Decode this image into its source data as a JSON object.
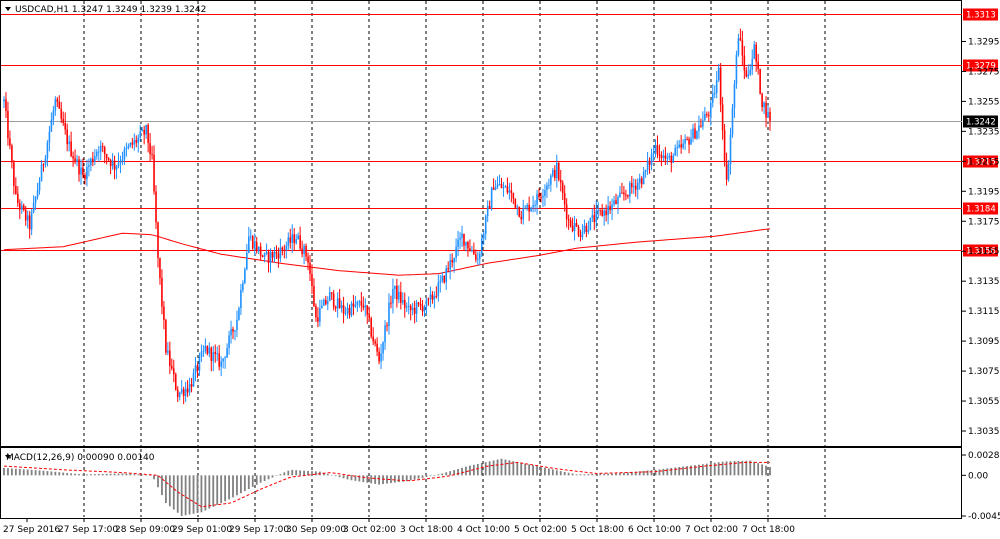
{
  "main_info": "USDCAD,H1  1.3247 1.3249 1.3239 1.3242",
  "macd_info": "MACD(12,26,9) 0.00090 0.00140",
  "colors": {
    "bull": "#1e90ff",
    "bear": "#ff0000",
    "level": "#ff0000",
    "ma": "#ff0000",
    "current": "#a0a0a0",
    "current_label_bg": "#000000",
    "histogram": "#808080",
    "signal": "#ff0000",
    "grid": "#000000",
    "frame": "#000000"
  },
  "chart_data": [
    {
      "type": "candlestick",
      "symbol": "USDCAD",
      "timeframe": "H1",
      "ohlc_last": {
        "open": 1.3247,
        "high": 1.3249,
        "low": 1.3239,
        "close": 1.3242
      },
      "ylim": [
        1.3025,
        1.3322
      ],
      "y_ticks": [
        "1.3295",
        "1.3275",
        "1.3255",
        "1.3235",
        "1.3215",
        "1.3195",
        "1.3175",
        "1.3155",
        "1.3135",
        "1.3115",
        "1.3095",
        "1.3075",
        "1.3055",
        "1.3035"
      ],
      "x_ticks": [
        "27 Sep 2016",
        "27 Sep 17:00",
        "28 Sep 09:00",
        "29 Sep 01:00",
        "29 Sep 17:00",
        "30 Sep 09:00",
        "3 Oct 02:00",
        "3 Oct 18:00",
        "4 Oct 10:00",
        "5 Oct 02:00",
        "5 Oct 18:00",
        "6 Oct 10:00",
        "7 Oct 02:00",
        "7 Oct 18:00"
      ],
      "horizontal_levels": [
        {
          "label": "1.3313",
          "value": 1.3313
        },
        {
          "label": "1.3279",
          "value": 1.3279
        },
        {
          "label": "1.3215",
          "value": 1.3215
        },
        {
          "label": "1.3184",
          "value": 1.3184
        },
        {
          "label": "1.3156",
          "value": 1.3156
        }
      ],
      "current_price": {
        "label": "1.3242",
        "value": 1.3242
      },
      "moving_average": [
        {
          "i": 0,
          "v": 1.3156
        },
        {
          "i": 30,
          "v": 1.3158
        },
        {
          "i": 60,
          "v": 1.3167
        },
        {
          "i": 75,
          "v": 1.3166
        },
        {
          "i": 90,
          "v": 1.316
        },
        {
          "i": 110,
          "v": 1.3153
        },
        {
          "i": 140,
          "v": 1.3147
        },
        {
          "i": 170,
          "v": 1.3142
        },
        {
          "i": 200,
          "v": 1.3139
        },
        {
          "i": 220,
          "v": 1.314
        },
        {
          "i": 245,
          "v": 1.3147
        },
        {
          "i": 270,
          "v": 1.3152
        },
        {
          "i": 290,
          "v": 1.3157
        },
        {
          "i": 320,
          "v": 1.3161
        },
        {
          "i": 360,
          "v": 1.3165
        },
        {
          "i": 388,
          "v": 1.317
        }
      ],
      "price_path": [
        {
          "i": 0,
          "v": 1.3255
        },
        {
          "i": 6,
          "v": 1.319
        },
        {
          "i": 13,
          "v": 1.3172
        },
        {
          "i": 20,
          "v": 1.3215
        },
        {
          "i": 26,
          "v": 1.3255
        },
        {
          "i": 33,
          "v": 1.3225
        },
        {
          "i": 40,
          "v": 1.3205
        },
        {
          "i": 48,
          "v": 1.3225
        },
        {
          "i": 56,
          "v": 1.3212
        },
        {
          "i": 64,
          "v": 1.3225
        },
        {
          "i": 72,
          "v": 1.3235
        },
        {
          "i": 75,
          "v": 1.3215
        },
        {
          "i": 78,
          "v": 1.315
        },
        {
          "i": 82,
          "v": 1.309
        },
        {
          "i": 88,
          "v": 1.306
        },
        {
          "i": 94,
          "v": 1.3065
        },
        {
          "i": 102,
          "v": 1.309
        },
        {
          "i": 110,
          "v": 1.308
        },
        {
          "i": 118,
          "v": 1.311
        },
        {
          "i": 124,
          "v": 1.3165
        },
        {
          "i": 132,
          "v": 1.315
        },
        {
          "i": 140,
          "v": 1.3155
        },
        {
          "i": 148,
          "v": 1.3165
        },
        {
          "i": 154,
          "v": 1.315
        },
        {
          "i": 158,
          "v": 1.311
        },
        {
          "i": 165,
          "v": 1.3125
        },
        {
          "i": 172,
          "v": 1.3115
        },
        {
          "i": 182,
          "v": 1.312
        },
        {
          "i": 190,
          "v": 1.3082
        },
        {
          "i": 197,
          "v": 1.313
        },
        {
          "i": 205,
          "v": 1.3115
        },
        {
          "i": 215,
          "v": 1.312
        },
        {
          "i": 222,
          "v": 1.3135
        },
        {
          "i": 232,
          "v": 1.3165
        },
        {
          "i": 240,
          "v": 1.315
        },
        {
          "i": 248,
          "v": 1.32
        },
        {
          "i": 256,
          "v": 1.3195
        },
        {
          "i": 262,
          "v": 1.318
        },
        {
          "i": 270,
          "v": 1.319
        },
        {
          "i": 280,
          "v": 1.321
        },
        {
          "i": 286,
          "v": 1.3175
        },
        {
          "i": 292,
          "v": 1.3168
        },
        {
          "i": 300,
          "v": 1.3178
        },
        {
          "i": 308,
          "v": 1.3185
        },
        {
          "i": 316,
          "v": 1.3195
        },
        {
          "i": 324,
          "v": 1.3205
        },
        {
          "i": 330,
          "v": 1.3225
        },
        {
          "i": 336,
          "v": 1.3215
        },
        {
          "i": 344,
          "v": 1.3225
        },
        {
          "i": 352,
          "v": 1.3238
        },
        {
          "i": 358,
          "v": 1.325
        },
        {
          "i": 362,
          "v": 1.3275
        },
        {
          "i": 366,
          "v": 1.32
        },
        {
          "i": 369,
          "v": 1.325
        },
        {
          "i": 372,
          "v": 1.33
        },
        {
          "i": 376,
          "v": 1.327
        },
        {
          "i": 380,
          "v": 1.329
        },
        {
          "i": 384,
          "v": 1.3255
        },
        {
          "i": 388,
          "v": 1.3242
        }
      ]
    },
    {
      "type": "histogram",
      "indicator": "MACD",
      "params": "12,26,9",
      "values_last": {
        "main": 0.0009,
        "signal": 0.0014
      },
      "ylim": [
        -0.00451,
        0.00285
      ],
      "y_ticks": [
        "0.00285",
        "0.00",
        "-0.00451"
      ],
      "macd_path": [
        {
          "i": 0,
          "v": 0.0008
        },
        {
          "i": 20,
          "v": 0.0005
        },
        {
          "i": 40,
          "v": 0.0001
        },
        {
          "i": 60,
          "v": 0.0002
        },
        {
          "i": 75,
          "v": 0.0
        },
        {
          "i": 82,
          "v": -0.003
        },
        {
          "i": 90,
          "v": -0.0044
        },
        {
          "i": 100,
          "v": -0.004
        },
        {
          "i": 115,
          "v": -0.0025
        },
        {
          "i": 130,
          "v": -0.0008
        },
        {
          "i": 145,
          "v": 0.0006
        },
        {
          "i": 160,
          "v": 0.0004
        },
        {
          "i": 175,
          "v": -0.0005
        },
        {
          "i": 190,
          "v": -0.001
        },
        {
          "i": 205,
          "v": -0.0006
        },
        {
          "i": 222,
          "v": 0.0002
        },
        {
          "i": 235,
          "v": 0.001
        },
        {
          "i": 252,
          "v": 0.0018
        },
        {
          "i": 270,
          "v": 0.001
        },
        {
          "i": 290,
          "v": 0.0001
        },
        {
          "i": 310,
          "v": 0.0002
        },
        {
          "i": 330,
          "v": 0.0006
        },
        {
          "i": 350,
          "v": 0.0011
        },
        {
          "i": 365,
          "v": 0.0015
        },
        {
          "i": 378,
          "v": 0.0016
        },
        {
          "i": 388,
          "v": 0.0009
        }
      ],
      "signal_path": [
        {
          "i": 0,
          "v": 0.001
        },
        {
          "i": 30,
          "v": 0.0006
        },
        {
          "i": 60,
          "v": 0.0003
        },
        {
          "i": 78,
          "v": 0.0
        },
        {
          "i": 88,
          "v": -0.0018
        },
        {
          "i": 100,
          "v": -0.0034
        },
        {
          "i": 115,
          "v": -0.003
        },
        {
          "i": 130,
          "v": -0.0015
        },
        {
          "i": 145,
          "v": -0.0002
        },
        {
          "i": 165,
          "v": 0.0003
        },
        {
          "i": 185,
          "v": -0.0003
        },
        {
          "i": 205,
          "v": -0.0006
        },
        {
          "i": 225,
          "v": -0.0001
        },
        {
          "i": 245,
          "v": 0.001
        },
        {
          "i": 260,
          "v": 0.0014
        },
        {
          "i": 280,
          "v": 0.0007
        },
        {
          "i": 300,
          "v": 0.0002
        },
        {
          "i": 330,
          "v": 0.0004
        },
        {
          "i": 355,
          "v": 0.001
        },
        {
          "i": 375,
          "v": 0.0014
        },
        {
          "i": 388,
          "v": 0.0014
        }
      ]
    }
  ]
}
